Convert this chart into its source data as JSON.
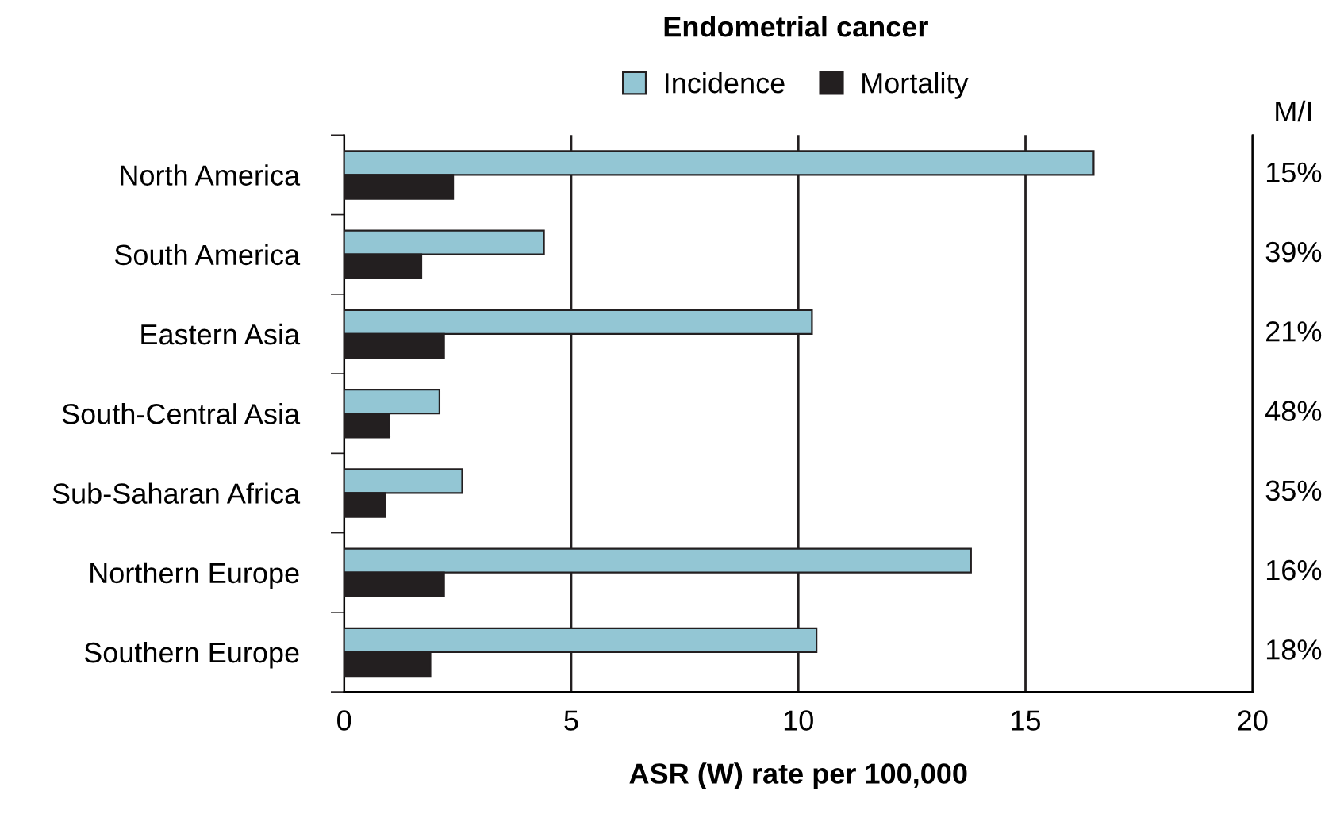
{
  "chart_data": {
    "type": "bar",
    "orientation": "horizontal",
    "title": "Endometrial cancer",
    "xlabel": "ASR (W) rate per 100,000",
    "categories": [
      "North America",
      "South America",
      "Eastern Asia",
      "South-Central Asia",
      "Sub-Saharan Africa",
      "Northern Europe",
      "Southern Europe"
    ],
    "series": [
      {
        "name": "Incidence",
        "color": "#93c6d4",
        "values": [
          16.5,
          4.4,
          10.3,
          2.1,
          2.6,
          13.8,
          10.4
        ]
      },
      {
        "name": "Mortality",
        "color": "#231f20",
        "values": [
          2.4,
          1.7,
          2.2,
          1.0,
          0.9,
          2.2,
          1.9
        ]
      }
    ],
    "xlim": [
      0,
      20
    ],
    "xticks": [
      0,
      5,
      10,
      15,
      20
    ],
    "grid": "x",
    "legend": "top",
    "annotations": [
      "M/I",
      "15%",
      "39%",
      "21%",
      "48%",
      "35%",
      "16%",
      "18%"
    ]
  }
}
